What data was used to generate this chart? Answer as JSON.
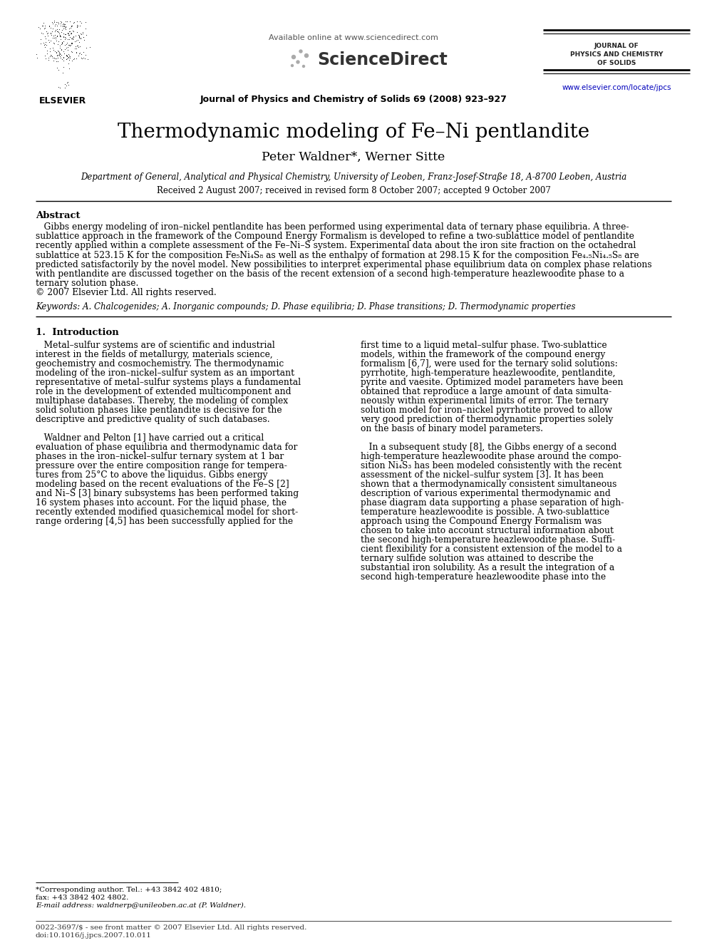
{
  "page_title": "Thermodynamic modeling of Fe–Ni pentlandite",
  "authors": "Peter Waldner*, Werner Sitte",
  "affiliation": "Department of General, Analytical and Physical Chemistry, University of Leoben, Franz-Josef-Straße 18, A-8700 Leoben, Austria",
  "received": "Received 2 August 2007; received in revised form 8 October 2007; accepted 9 October 2007",
  "journal_header": "Available online at www.sciencedirect.com",
  "journal_name": "Journal of Physics and Chemistry of Solids 69 (2008) 923–927",
  "journal_side_line1": "JOURNAL OF",
  "journal_side_line2": "PHYSICS AND CHEMISTRY",
  "journal_side_line3": "OF SOLIDS",
  "journal_url": "www.elsevier.com/locate/jpcs",
  "elsevier_label": "ELSEVIER",
  "abstract_title": "Abstract",
  "keywords": "Keywords: A. Chalcogenides; A. Inorganic compounds; D. Phase equilibria; D. Phase transitions; D. Thermodynamic properties",
  "section1_title": "1.  Introduction",
  "footnote_line1": "*Corresponding author. Tel.: +43 3842 402 4810;",
  "footnote_line2": "fax: +43 3842 402 4802.",
  "footnote_line3": "E-mail address: waldnerp@unileoben.ac.at (P. Waldner).",
  "bottom_line1": "0022-3697/$ - see front matter © 2007 Elsevier Ltd. All rights reserved.",
  "bottom_line2": "doi:10.1016/j.jpcs.2007.10.011",
  "bg_color": "#ffffff",
  "text_color": "#000000",
  "link_color": "#0000bb",
  "abstract_lines": [
    "   Gibbs energy modeling of iron–nickel pentlandite has been performed using experimental data of ternary phase equilibria. A three-",
    "sublattice approach in the framework of the Compound Energy Formalism is developed to refine a two-sublattice model of pentlandite",
    "recently applied within a complete assessment of the Fe–Ni–S system. Experimental data about the iron site fraction on the octahedral",
    "sublattice at 523.15 K for the composition Fe₅Ni₄S₈ as well as the enthalpy of formation at 298.15 K for the composition Fe₄.₅Ni₄.₅S₈ are",
    "predicted satisfactorily by the novel model. New possibilities to interpret experimental phase equilibrium data on complex phase relations",
    "with pentlandite are discussed together on the basis of the recent extension of a second high-temperature heazlewoodite phase to a",
    "ternary solution phase.",
    "© 2007 Elsevier Ltd. All rights reserved."
  ],
  "left_col_lines": [
    "   Metal–sulfur systems are of scientific and industrial",
    "interest in the fields of metallurgy, materials science,",
    "geochemistry and cosmochemistry. The thermodynamic",
    "modeling of the iron–nickel–sulfur system as an important",
    "representative of metal–sulfur systems plays a fundamental",
    "role in the development of extended multicomponent and",
    "multiphase databases. Thereby, the modeling of complex",
    "solid solution phases like pentlandite is decisive for the",
    "descriptive and predictive quality of such databases.",
    "",
    "   Waldner and Pelton [1] have carried out a critical",
    "evaluation of phase equilibria and thermodynamic data for",
    "phases in the iron–nickel–sulfur ternary system at 1 bar",
    "pressure over the entire composition range for tempera-",
    "tures from 25°C to above the liquidus. Gibbs energy",
    "modeling based on the recent evaluations of the Fe–S [2]",
    "and Ni–S [3] binary subsystems has been performed taking",
    "16 system phases into account. For the liquid phase, the",
    "recently extended modified quasichemical model for short-",
    "range ordering [4,5] has been successfully applied for the"
  ],
  "right_col_lines": [
    "first time to a liquid metal–sulfur phase. Two-sublattice",
    "models, within the framework of the compound energy",
    "formalism [6,7], were used for the ternary solid solutions:",
    "pyrrhotite, high-temperature heazlewoodite, pentlandite,",
    "pyrite and vaesite. Optimized model parameters have been",
    "obtained that reproduce a large amount of data simulta-",
    "neously within experimental limits of error. The ternary",
    "solution model for iron–nickel pyrrhotite proved to allow",
    "very good prediction of thermodynamic properties solely",
    "on the basis of binary model parameters.",
    "",
    "   In a subsequent study [8], the Gibbs energy of a second",
    "high-temperature heazlewoodite phase around the compo-",
    "sition Ni₄S₃ has been modeled consistently with the recent",
    "assessment of the nickel–sulfur system [3]. It has been",
    "shown that a thermodynamically consistent simultaneous",
    "description of various experimental thermodynamic and",
    "phase diagram data supporting a phase separation of high-",
    "temperature heazlewoodite is possible. A two-sublattice",
    "approach using the Compound Energy Formalism was",
    "chosen to take into account structural information about",
    "the second high-temperature heazlewoodite phase. Suffi-",
    "cient flexibility for a consistent extension of the model to a",
    "ternary sulfide solution was attained to describe the",
    "substantial iron solubility. As a result the integration of a",
    "second high-temperature heazlewoodite phase into the"
  ]
}
